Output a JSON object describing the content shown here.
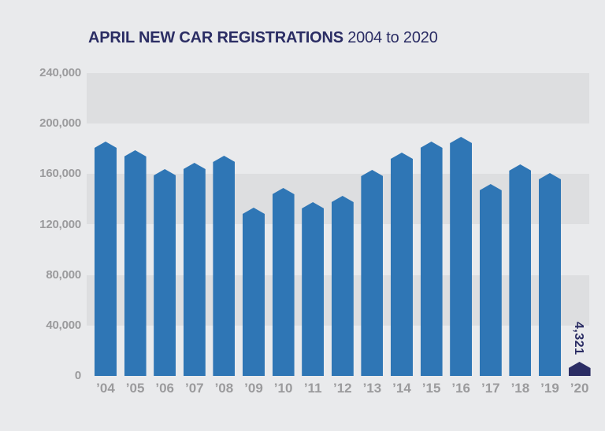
{
  "title": {
    "main": "APRIL NEW CAR REGISTRATIONS",
    "subtitle": "2004 to 2020"
  },
  "annotation": {
    "value_2020_label": "4,321"
  },
  "colors": {
    "background": "#e9eaec",
    "band": "#dddee0",
    "bar": "#2f76b5",
    "highlight": "#2b2d64",
    "title_text": "#2b2d64",
    "axis_text": "#9b9b9d"
  },
  "chart_data": {
    "type": "bar",
    "title": "APRIL NEW CAR REGISTRATIONS 2004 to 2020",
    "xlabel": "",
    "ylabel": "",
    "categories": [
      "’04",
      "’05",
      "’06",
      "’07",
      "’08",
      "’09",
      "’10",
      "’11",
      "’12",
      "’13",
      "’14",
      "’15",
      "’16",
      "’17",
      "’18",
      "’19",
      "’20"
    ],
    "values": [
      186000,
      179000,
      164000,
      169000,
      174500,
      133475,
      148793,
      137746,
      142885,
      163357,
      176820,
      185778,
      189505,
      152076,
      167911,
      161064,
      4321
    ],
    "ylim": [
      0,
      240000
    ],
    "ytick_interval": 40000,
    "ytick_labels": [
      "240,000",
      "200,000",
      "160,000",
      "120,000",
      "80,000",
      "40,000",
      "0"
    ],
    "grid": "alternating-horizontal-bands",
    "legend": "none",
    "bar_style": "pentagon-peaked-top",
    "highlight_bar": {
      "category": "’20",
      "value": 4321,
      "label": "4,321",
      "label_orientation": "vertical"
    }
  }
}
